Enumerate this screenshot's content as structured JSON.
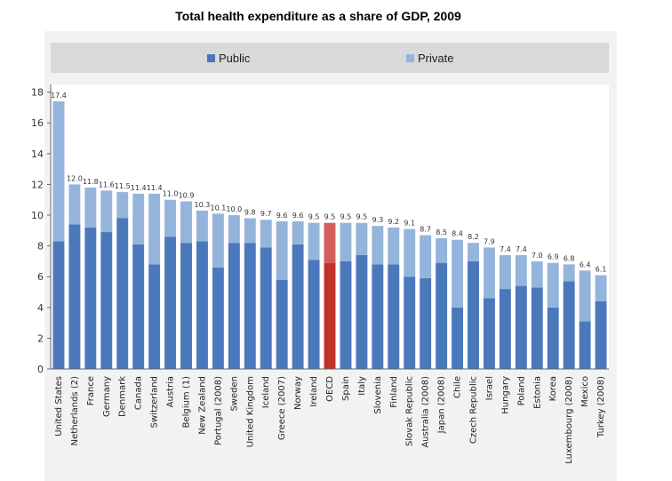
{
  "title": "Total health expenditure as a share of GDP, 2009",
  "colors": {
    "public": "#4a78bb",
    "private": "#95b4dc",
    "oecd_public": "#c0312b",
    "oecd_private": "#d45f5a",
    "background": "#f2f2f2",
    "legend_bg": "#d9d9d9"
  },
  "chart_data": {
    "type": "bar",
    "stacked": true,
    "title": "Total health expenditure as a share of GDP, 2009",
    "xlabel": "",
    "ylabel": "",
    "ylim": [
      0,
      18.5
    ],
    "yticks": [
      0,
      2,
      4,
      6,
      8,
      10,
      12,
      14,
      16,
      18
    ],
    "grid": false,
    "legend_position": "top",
    "categories": [
      "United States",
      "Netherlands (2)",
      "France",
      "Germany",
      "Denmark",
      "Canada",
      "Switzerland",
      "Austria",
      "Belgium (1)",
      "New Zealand",
      "Portugal (2008)",
      "Sweden",
      "United Kingdom",
      "Iceland",
      "Greece (2007)",
      "Norway",
      "Ireland",
      "OECD",
      "Spain",
      "Italy",
      "Slovenia",
      "Finland",
      "Slovak Republic",
      "Australia (2008)",
      "Japan (2008)",
      "Chile",
      "Czech Republic",
      "Israel",
      "Hungary",
      "Poland",
      "Estonia",
      "Korea",
      "Luxembourg (2008)",
      "Mexico",
      "Turkey (2008)"
    ],
    "totals_labels": [
      "17.4",
      "12.0",
      "11.8",
      "11.6",
      "11.5",
      "11.4",
      "11.4",
      "11.0",
      "10.9",
      "10.3",
      "10.1",
      "10.0",
      "9.8",
      "9.7",
      "9.6",
      "9.6",
      "9.5",
      "9.5",
      "9.5",
      "9.5",
      "9.3",
      "9.2",
      "9.1",
      "8.7",
      "8.5",
      "8.4",
      "8.2",
      "7.9",
      "7.4",
      "7.4",
      "7.0",
      "6.9",
      "6.8",
      "6.4",
      "6.1"
    ],
    "highlight": "OECD",
    "series": [
      {
        "name": "Public",
        "values": [
          8.3,
          9.4,
          9.2,
          8.9,
          9.8,
          8.1,
          6.8,
          8.6,
          8.2,
          8.3,
          6.6,
          8.2,
          8.2,
          7.9,
          5.8,
          8.1,
          7.1,
          6.9,
          7.0,
          7.4,
          6.8,
          6.8,
          6.0,
          5.9,
          6.9,
          4.0,
          7.0,
          4.6,
          5.2,
          5.4,
          5.3,
          4.0,
          5.7,
          3.1,
          4.4
        ]
      },
      {
        "name": "Private",
        "values": [
          9.1,
          2.6,
          2.6,
          2.7,
          1.7,
          3.3,
          4.6,
          2.4,
          2.7,
          2.0,
          3.5,
          1.8,
          1.6,
          1.8,
          3.8,
          1.5,
          2.4,
          2.6,
          2.5,
          2.1,
          2.5,
          2.4,
          3.1,
          2.8,
          1.6,
          4.4,
          1.2,
          3.3,
          2.2,
          2.0,
          1.7,
          2.9,
          1.1,
          3.3,
          1.7
        ]
      }
    ]
  }
}
